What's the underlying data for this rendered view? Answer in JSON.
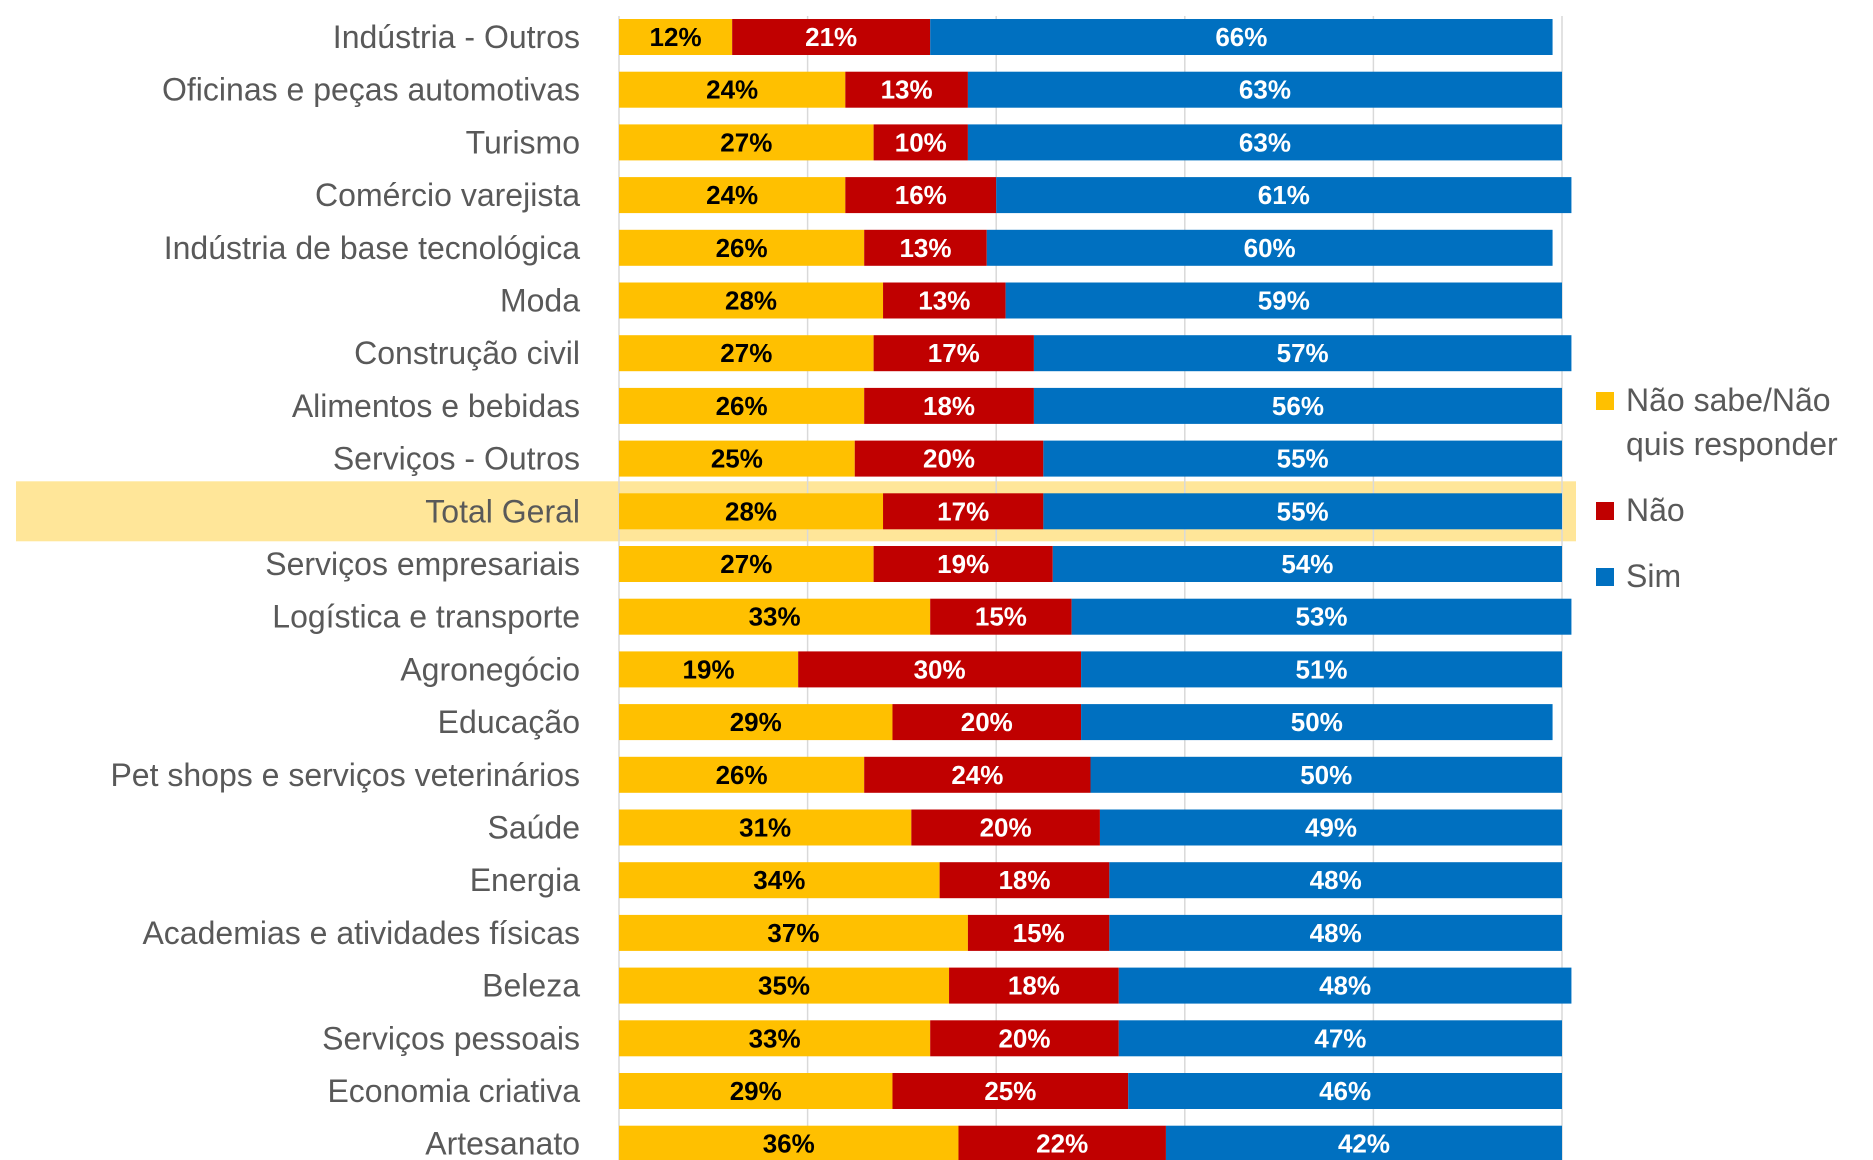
{
  "chart_data": {
    "type": "stacked_barh",
    "categories": [
      "Indústria - Outros",
      "Oficinas e peças automotivas",
      "Turismo",
      "Comércio varejista",
      "Indústria de base tecnológica",
      "Moda",
      "Construção civil",
      "Alimentos e bebidas",
      "Serviços - Outros",
      "Total Geral",
      "Serviços empresariais",
      "Logística e transporte",
      "Agronegócio",
      "Educação",
      "Pet shops e serviços veterinários",
      "Saúde",
      "Energia",
      "Academias e atividades físicas",
      "Beleza",
      "Serviços pessoais",
      "Economia criativa",
      "Artesanato"
    ],
    "series": [
      {
        "name": "Não sabe/Não quis responder",
        "color": "#ffc000",
        "label_color": "#000000",
        "values": [
          12,
          24,
          27,
          24,
          26,
          28,
          27,
          26,
          25,
          28,
          27,
          33,
          19,
          29,
          26,
          31,
          34,
          37,
          35,
          33,
          29,
          36
        ],
        "value_labels": [
          "12%",
          "24%",
          "27%",
          "24%",
          "26%",
          "28%",
          "27%",
          "26%",
          "25%",
          "28%",
          "27%",
          "33%",
          "19%",
          "29%",
          "26%",
          "31%",
          "34%",
          "37%",
          "35%",
          "33%",
          "29%",
          "36%"
        ]
      },
      {
        "name": "Não",
        "color": "#c00000",
        "label_color": "#ffffff",
        "values": [
          21,
          13,
          10,
          16,
          13,
          13,
          17,
          18,
          20,
          17,
          19,
          15,
          30,
          20,
          24,
          20,
          18,
          15,
          18,
          20,
          25,
          22
        ],
        "value_labels": [
          "21%",
          "13%",
          "10%",
          "16%",
          "13%",
          "13%",
          "17%",
          "18%",
          "20%",
          "17%",
          "19%",
          "15%",
          "30%",
          "20%",
          "24%",
          "20%",
          "18%",
          "15%",
          "18%",
          "20%",
          "25%",
          "22%"
        ]
      },
      {
        "name": "Sim",
        "color": "#0070c0",
        "label_color": "#ffffff",
        "values": [
          66,
          63,
          63,
          61,
          60,
          59,
          57,
          56,
          55,
          55,
          54,
          53,
          51,
          50,
          50,
          49,
          48,
          48,
          48,
          47,
          46,
          42
        ],
        "value_labels": [
          "66%",
          "63%",
          "63%",
          "61%",
          "60%",
          "59%",
          "57%",
          "56%",
          "55%",
          "55%",
          "54%",
          "53%",
          "51%",
          "50%",
          "50%",
          "49%",
          "48%",
          "48%",
          "48%",
          "47%",
          "46%",
          "42%"
        ]
      }
    ],
    "xlim": [
      0,
      100
    ],
    "xticks": [
      0,
      20,
      40,
      60,
      80,
      100
    ],
    "grid": true,
    "highlight_index": 9,
    "highlight_color": "#ffe699",
    "legend": "right"
  }
}
